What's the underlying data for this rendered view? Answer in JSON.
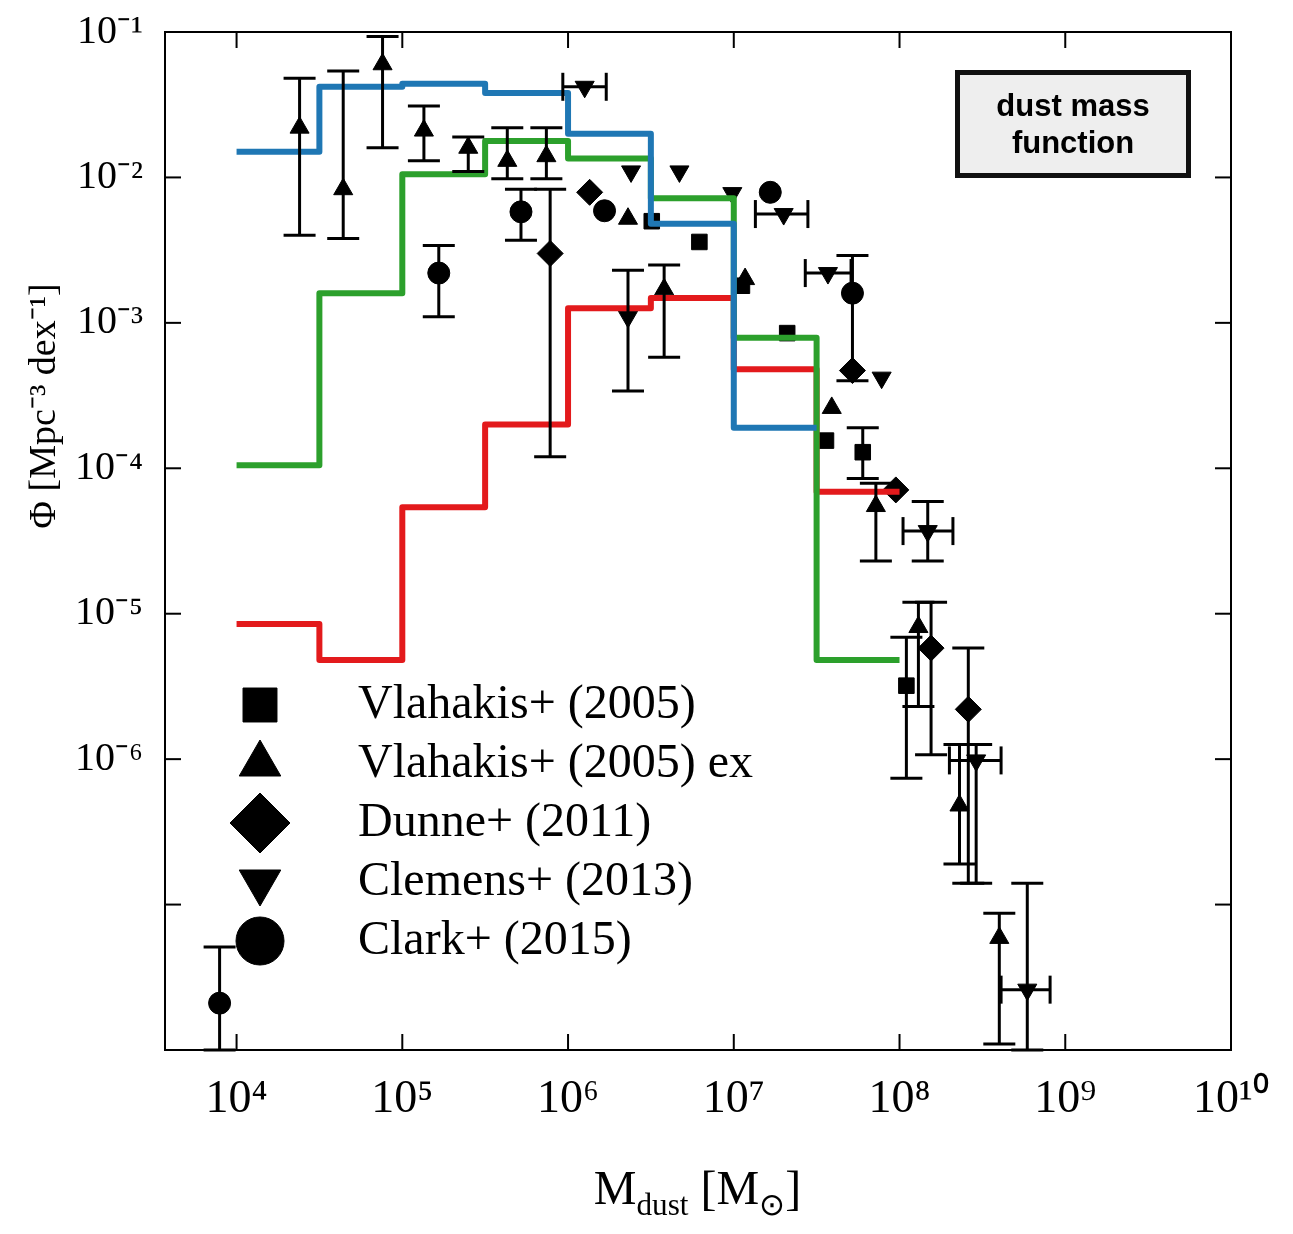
{
  "chart_data": {
    "type": "scatter",
    "xlabel": "M$_{dust}$ [M$_{⊙}$]",
    "ylabel": "Φ [Mpc⁻³ dex⁻¹]",
    "annotations": [
      "dust mass function"
    ],
    "log": "xy",
    "grid": false,
    "legend": "bottom left",
    "xlim": [
      3700,
      10000000000
    ],
    "ylim": [
      1e-08,
      0.1
    ],
    "xticks": [
      {
        "value": 10000,
        "label": "10⁴"
      },
      {
        "value": 100000,
        "label": "10⁵"
      },
      {
        "value": 1000000,
        "label": "10⁶"
      },
      {
        "value": 10000000,
        "label": "10⁷"
      },
      {
        "value": 100000000,
        "label": "10⁸"
      },
      {
        "value": 1000000000,
        "label": "10⁹"
      },
      {
        "value": 10000000000,
        "label": "10¹⁰"
      }
    ],
    "yticks": [
      {
        "value": 0.1,
        "label": "10⁻¹"
      },
      {
        "value": 0.01,
        "label": "10⁻²"
      },
      {
        "value": 0.001,
        "label": "10⁻³"
      },
      {
        "value": 0.0001,
        "label": "10⁻⁴"
      },
      {
        "value": 1e-05,
        "label": "10⁻⁵"
      },
      {
        "value": 1e-06,
        "label": "10⁻⁶"
      },
      {
        "value": 1e-07,
        "label": null
      },
      {
        "value": 1e-08,
        "label": null
      }
    ],
    "series": [
      {
        "type": "step",
        "color": "#1f77b4",
        "x": [
          10000,
          31600,
          100000,
          316000,
          1000000,
          3160000,
          10000000,
          31600000
        ],
        "values": [
          0.015,
          0.042,
          0.044,
          0.038,
          0.02,
          0.0048,
          0.00019,
          0.00019
        ]
      },
      {
        "type": "step",
        "color": "#2ca02c",
        "x": [
          10000,
          31600,
          100000,
          316000,
          1000000,
          3160000,
          10000000,
          31600000,
          100000000
        ],
        "values": [
          0.000105,
          0.0016,
          0.0105,
          0.0178,
          0.0135,
          0.0072,
          0.00079,
          4.8e-06,
          4.8e-06
        ]
      },
      {
        "type": "step",
        "color": "#e31a1c",
        "x": [
          10000,
          31600,
          100000,
          316000,
          1000000,
          3160000,
          10000000,
          31600000,
          100000000
        ],
        "values": [
          8.5e-06,
          4.8e-06,
          5.4e-05,
          0.0002,
          0.00126,
          0.00148,
          0.00048,
          6.9e-05,
          6.9e-05
        ]
      },
      {
        "name": "Vlahakis+ (2005)",
        "marker": "square",
        "color": "#000000",
        "x": [
          3200000,
          6200000,
          11200000,
          21000000,
          36000000,
          60000000,
          110000000
        ],
        "values": [
          0.005,
          0.0036,
          0.0018,
          0.00085,
          0.000155,
          0.000129,
          3.2e-06
        ],
        "errors": [
          null,
          null,
          null,
          null,
          null,
          [
            8.5e-05,
            0.00019
          ],
          [
            7.4e-07,
            6.9e-06
          ]
        ]
      },
      {
        "name": "Vlahakis+ (2005) ex",
        "marker": "triangle",
        "color": "#000000",
        "x": [
          24000,
          44000,
          76000,
          135000,
          250000,
          430000,
          740000,
          2300000,
          3800000,
          11700000,
          39000000,
          72000000,
          130000000,
          230000000,
          400000000
        ],
        "values": [
          0.022,
          0.0083,
          0.06,
          0.021,
          0.016,
          0.013,
          0.014,
          0.0052,
          0.0017,
          0.002,
          0.00026,
          5.5e-05,
          8.1e-06,
          4.8e-07,
          5.9e-08
        ],
        "errors": [
          [
            0.004,
            0.048
          ],
          [
            0.0038,
            0.054
          ],
          [
            0.016,
            0.093
          ],
          [
            0.013,
            0.031
          ],
          [
            0.011,
            0.019
          ],
          [
            0.0098,
            0.022
          ],
          [
            0.0098,
            0.022
          ],
          null,
          [
            0.00058,
            0.0025
          ],
          null,
          null,
          [
            2.3e-05,
            7.9e-05
          ],
          [
            2.3e-06,
            1.2e-05
          ],
          [
            1.9e-07,
            1.26e-06
          ],
          [
            1.1e-08,
            8.7e-08
          ]
        ]
      },
      {
        "name": "Dunne+ (2011)",
        "marker": "diamond",
        "color": "#000000",
        "x": [
          780000,
          1350000,
          52000000,
          95000000,
          155000000,
          260000000
        ],
        "values": [
          0.003,
          0.0079,
          0.00047,
          7.1e-05,
          5.8e-06,
          2.2e-06
        ],
        "errors": [
          [
            0.00012,
            0.0083
          ],
          null,
          null,
          null,
          [
            1.07e-06,
            1.2e-05
          ],
          [
            1.4e-07,
            5.8e-06
          ]
        ]
      },
      {
        "name": "Clemens+ (2013)",
        "marker": "triangle-down",
        "color": "#000000",
        "x": [
          1260000,
          2400000,
          4700000,
          9800000,
          20000000,
          2300000,
          37000000,
          78000000,
          148000000,
          290000000,
          590000000
        ],
        "values": [
          0.042,
          0.011,
          0.011,
          0.0078,
          0.0056,
          0.0011,
          0.0022,
          0.00042,
          3.7e-05,
          9.8e-07,
          2.6e-08
        ],
        "errors": [
          null,
          null,
          null,
          null,
          null,
          [
            0.00034,
            0.0023
          ],
          null,
          null,
          [
            2.3e-05,
            5.9e-05
          ],
          [
            1.4e-07,
            1.26e-06
          ],
          [
            1e-08,
            1.4e-07
          ]
        ],
        "xerrors": [
          [
            930000,
            1700000
          ],
          null,
          null,
          null,
          [
            13500000,
            28000000
          ],
          null,
          [
            27000000,
            51000000
          ],
          null,
          [
            105000000,
            210000000
          ],
          [
            200000000,
            410000000
          ],
          [
            410000000,
            810000000
          ]
        ]
      },
      {
        "name": "Clark+ (2015)",
        "marker": "circle",
        "color": "#000000",
        "x": [
          166000,
          520000,
          1660000,
          16600000,
          52000000,
          7900
        ],
        "values": [
          0.0022,
          0.0058,
          0.0059,
          0.0079,
          0.0016,
          2.1e-08
        ],
        "errors": [
          [
            0.0011,
            0.0034
          ],
          [
            0.0037,
            0.0083
          ],
          null,
          null,
          [
            0.0004,
            0.0029
          ],
          [
            1e-08,
            5.1e-08
          ]
        ]
      }
    ]
  }
}
